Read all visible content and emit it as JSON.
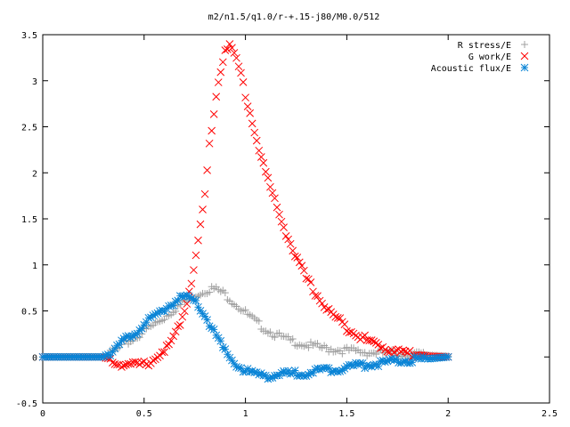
{
  "chart_data": {
    "type": "scatter",
    "title": "m2/n1.5/q1.0/r-+.15-j80/M0.0/512",
    "xlabel": "",
    "ylabel": "",
    "xlim": [
      0,
      2.5
    ],
    "ylim": [
      -0.5,
      3.5
    ],
    "x_ticks": [
      "0",
      "0.5",
      "1",
      "1.5",
      "2",
      "2.5"
    ],
    "y_ticks": [
      "-0.5",
      "0",
      "0.5",
      "1",
      "1.5",
      "2",
      "2.5",
      "3",
      "3.5"
    ],
    "grid": false,
    "legend_position": "top-right",
    "series": [
      {
        "name": "R stress/E",
        "marker": "plus",
        "color": "#a0a0a0",
        "x": [
          0.0,
          0.1,
          0.2,
          0.3,
          0.35,
          0.4,
          0.45,
          0.5,
          0.55,
          0.6,
          0.65,
          0.7,
          0.75,
          0.8,
          0.83,
          0.86,
          0.9,
          0.95,
          1.0,
          1.05,
          1.1,
          1.15,
          1.2,
          1.3,
          1.4,
          1.5,
          1.6,
          1.7,
          1.8,
          1.9,
          2.0
        ],
        "y": [
          0.0,
          0.0,
          0.0,
          0.0,
          0.05,
          0.13,
          0.2,
          0.28,
          0.35,
          0.43,
          0.52,
          0.6,
          0.67,
          0.72,
          0.74,
          0.73,
          0.68,
          0.58,
          0.48,
          0.38,
          0.3,
          0.24,
          0.19,
          0.13,
          0.09,
          0.07,
          0.05,
          0.04,
          0.03,
          0.02,
          0.01
        ]
      },
      {
        "name": "G work/E",
        "marker": "cross",
        "color": "#ff0000",
        "x": [
          0.0,
          0.1,
          0.2,
          0.3,
          0.35,
          0.4,
          0.45,
          0.5,
          0.55,
          0.6,
          0.65,
          0.7,
          0.75,
          0.8,
          0.82,
          0.84,
          0.86,
          0.88,
          0.9,
          0.92,
          0.94,
          0.96,
          0.98,
          1.0,
          1.05,
          1.1,
          1.15,
          1.2,
          1.25,
          1.3,
          1.35,
          1.4,
          1.5,
          1.6,
          1.7,
          1.8,
          1.9,
          2.0
        ],
        "y": [
          0.0,
          0.0,
          0.0,
          0.0,
          -0.05,
          -0.08,
          -0.09,
          -0.08,
          -0.03,
          0.05,
          0.22,
          0.5,
          1.0,
          1.75,
          2.25,
          2.6,
          2.9,
          3.15,
          3.35,
          3.38,
          3.3,
          3.2,
          3.05,
          2.85,
          2.4,
          2.0,
          1.65,
          1.35,
          1.08,
          0.85,
          0.68,
          0.52,
          0.32,
          0.18,
          0.09,
          0.04,
          0.01,
          0.0
        ]
      },
      {
        "name": "Acoustic flux/E",
        "marker": "star",
        "color": "#0a84d6",
        "x": [
          0.0,
          0.1,
          0.2,
          0.3,
          0.35,
          0.4,
          0.45,
          0.5,
          0.55,
          0.6,
          0.65,
          0.7,
          0.75,
          0.8,
          0.85,
          0.9,
          0.95,
          1.0,
          1.05,
          1.1,
          1.15,
          1.2,
          1.3,
          1.4,
          1.5,
          1.6,
          1.7,
          1.8,
          1.9,
          2.0
        ],
        "y": [
          0.0,
          0.0,
          0.0,
          0.0,
          0.08,
          0.17,
          0.26,
          0.35,
          0.43,
          0.52,
          0.6,
          0.65,
          0.6,
          0.45,
          0.25,
          0.05,
          -0.08,
          -0.15,
          -0.19,
          -0.2,
          -0.2,
          -0.19,
          -0.17,
          -0.14,
          -0.11,
          -0.08,
          -0.06,
          -0.04,
          -0.02,
          0.0
        ]
      }
    ]
  }
}
